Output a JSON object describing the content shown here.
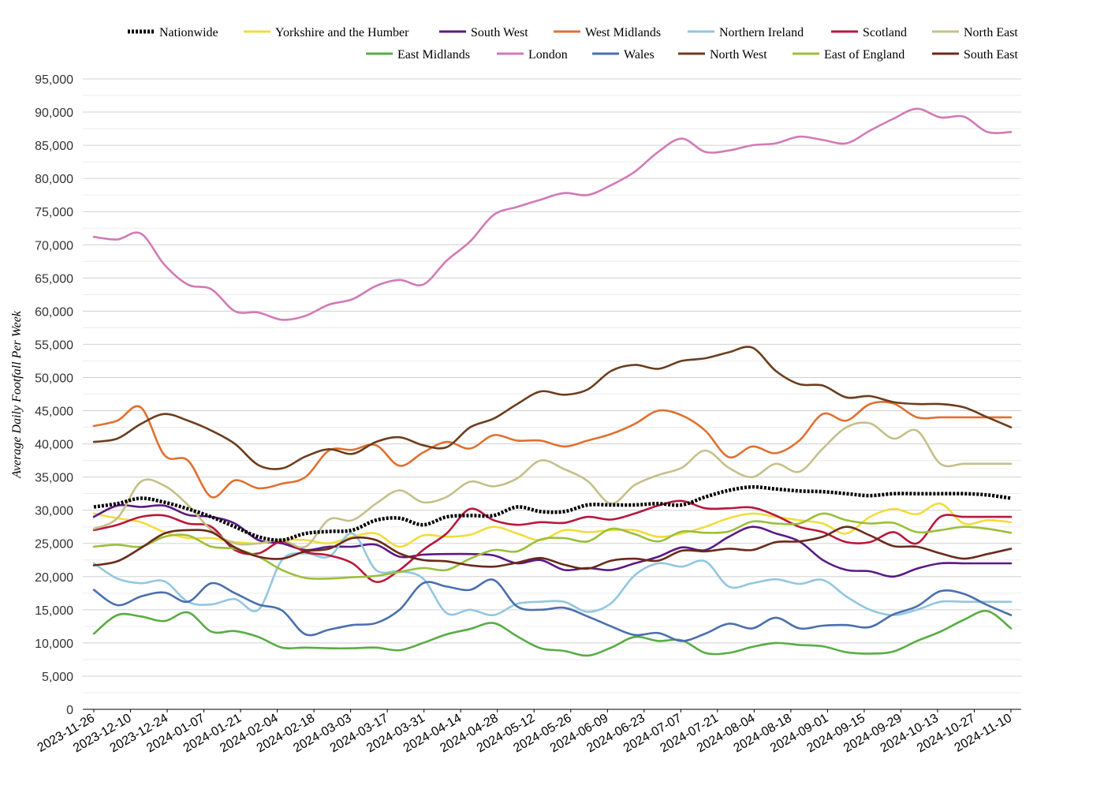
{
  "chart_data": {
    "type": "line",
    "title": "",
    "xlabel": "",
    "ylabel": "Average Daily Footfall Per Week",
    "ylim": [
      0,
      95000
    ],
    "grid": true,
    "legend": "top",
    "y_ticks": [
      "0",
      "5,000",
      "10,000",
      "15,000",
      "20,000",
      "25,000",
      "30,000",
      "35,000",
      "40,000",
      "45,000",
      "50,000",
      "55,000",
      "60,000",
      "65,000",
      "70,000",
      "75,000",
      "80,000",
      "85,000",
      "90,000",
      "95,000"
    ],
    "x_ticks": [
      "2023-11-26",
      "2023-12-10",
      "2023-12-24",
      "2024-01-07",
      "2024-01-21",
      "2024-02-04",
      "2024-02-18",
      "2024-03-03",
      "2024-03-17",
      "2024-03-31",
      "2024-04-14",
      "2024-04-28",
      "2024-05-12",
      "2024-05-26",
      "2024-06-09",
      "2024-06-23",
      "2024-07-07",
      "2024-07-21",
      "2024-08-04",
      "2024-08-18",
      "2024-09-01",
      "2024-09-15",
      "2024-09-29",
      "2024-10-13",
      "2024-10-27",
      "2024-11-10"
    ],
    "series": [
      {
        "name": "Nationwide",
        "color": "#000000",
        "dashed": true,
        "values": [
          30500,
          31000,
          31800,
          31200,
          30200,
          29000,
          27500,
          26000,
          25500,
          26500,
          26800,
          27000,
          28500,
          28800,
          27800,
          29000,
          29200,
          29200,
          30500,
          29800,
          29800,
          30800,
          30800,
          30800,
          31000,
          30800,
          32000,
          33000,
          33500,
          33200,
          32900,
          32800,
          32500,
          32200,
          32500,
          32500,
          32500,
          32500,
          32300,
          31800
        ]
      },
      {
        "name": "Yorkshire and the Humber",
        "color": "#f2dc3c",
        "values": [
          29500,
          28800,
          28200,
          26700,
          25800,
          25800,
          25200,
          25000,
          25500,
          25500,
          25000,
          26000,
          26500,
          24500,
          26200,
          26000,
          26300,
          27500,
          26500,
          25500,
          27000,
          26700,
          27000,
          27000,
          26000,
          26500,
          27500,
          28800,
          29500,
          29000,
          28500,
          28000,
          26500,
          29000,
          30200,
          29400,
          31000,
          28000,
          28500,
          28200
        ]
      },
      {
        "name": "South West",
        "color": "#5a1a82",
        "values": [
          29000,
          30700,
          30500,
          30700,
          29300,
          29000,
          28000,
          25500,
          25000,
          24000,
          24500,
          24500,
          24800,
          23000,
          23300,
          23400,
          23400,
          23200,
          22000,
          22500,
          21000,
          21300,
          21000,
          22000,
          23000,
          24400,
          24000,
          26000,
          27500,
          26500,
          25300,
          22500,
          21000,
          20800,
          20000,
          21200,
          22000,
          22000,
          22000,
          22000
        ]
      },
      {
        "name": "West Midlands",
        "color": "#e07030",
        "values": [
          42700,
          43500,
          45500,
          38300,
          37500,
          32000,
          34500,
          33300,
          34000,
          35000,
          39000,
          39100,
          39800,
          36700,
          38700,
          40300,
          39300,
          41300,
          40500,
          40500,
          39600,
          40500,
          41500,
          43000,
          45000,
          44300,
          42000,
          38000,
          39600,
          38600,
          40500,
          44500,
          43500,
          46000,
          46100,
          44000,
          44000,
          44000,
          44000,
          44000
        ]
      },
      {
        "name": "Northern Ireland",
        "color": "#93c6e0",
        "values": [
          22000,
          19700,
          19000,
          19300,
          16200,
          15800,
          16600,
          15000,
          22500,
          23500,
          23000,
          26500,
          21000,
          20800,
          19700,
          14500,
          15000,
          14200,
          15900,
          16200,
          16200,
          14700,
          16000,
          20200,
          22000,
          21500,
          22300,
          18500,
          19000,
          19600,
          18900,
          19500,
          17000,
          15000,
          14200,
          15000,
          16200,
          16200,
          16200,
          16200
        ]
      },
      {
        "name": "Scotland",
        "color": "#b8183c",
        "values": [
          27000,
          27800,
          29000,
          29200,
          28000,
          27500,
          24000,
          23500,
          25300,
          23700,
          23200,
          22000,
          19200,
          21000,
          24000,
          26500,
          30200,
          28500,
          27800,
          28200,
          28100,
          29000,
          28600,
          29500,
          30700,
          31400,
          30300,
          30300,
          30400,
          29200,
          27500,
          26700,
          25200,
          25200,
          26700,
          25000,
          29000,
          29000,
          29000,
          29000
        ]
      },
      {
        "name": "North East",
        "color": "#c4c08a",
        "values": [
          27200,
          28800,
          34300,
          33700,
          30800,
          27000,
          25000,
          25000,
          25500,
          24500,
          28600,
          28500,
          31000,
          33000,
          31200,
          32000,
          34300,
          33600,
          34800,
          37500,
          36200,
          34400,
          31000,
          33800,
          35300,
          36400,
          39000,
          36400,
          35000,
          37000,
          35800,
          39300,
          42500,
          43100,
          40800,
          42000,
          37000,
          37000,
          37000,
          37000
        ]
      },
      {
        "name": "East Midlands",
        "color": "#58ad44",
        "values": [
          11400,
          14200,
          14000,
          13300,
          14600,
          11700,
          11800,
          10900,
          9300,
          9300,
          9200,
          9200,
          9300,
          8900,
          10000,
          11300,
          12100,
          13000,
          11000,
          9200,
          8800,
          8100,
          9300,
          10900,
          10300,
          10400,
          8500,
          8500,
          9400,
          10000,
          9700,
          9500,
          8600,
          8400,
          8700,
          10300,
          11700,
          13500,
          14800,
          12200
        ]
      },
      {
        "name": "London",
        "color": "#d27ab6",
        "values": [
          71200,
          70800,
          71700,
          67000,
          64000,
          63300,
          60000,
          59800,
          58700,
          59300,
          61000,
          61800,
          63800,
          64700,
          64000,
          67600,
          70500,
          74500,
          75700,
          76800,
          77800,
          77500,
          79000,
          81000,
          84000,
          86000,
          84000,
          84200,
          85000,
          85300,
          86300,
          85800,
          85300,
          87200,
          89000,
          90500,
          89200,
          89300,
          87000,
          87000
        ]
      },
      {
        "name": "Wales",
        "color": "#4a6fad",
        "values": [
          18000,
          15700,
          17000,
          17600,
          16200,
          19000,
          17500,
          15800,
          14900,
          11300,
          12000,
          12700,
          13000,
          15000,
          19000,
          18500,
          18000,
          19500,
          15500,
          15000,
          15300,
          14000,
          12500,
          11200,
          11500,
          10300,
          11400,
          12900,
          12200,
          13800,
          12200,
          12600,
          12700,
          12400,
          14300,
          15500,
          17800,
          17400,
          15700,
          14200
        ]
      },
      {
        "name": "North West",
        "color": "#6b3e1e",
        "values": [
          40300,
          40800,
          43000,
          44500,
          43500,
          42000,
          40000,
          36800,
          36300,
          38100,
          39200,
          38500,
          40300,
          41000,
          39800,
          39500,
          42500,
          43800,
          46000,
          47900,
          47400,
          48200,
          51000,
          51900,
          51300,
          52500,
          52900,
          53800,
          54500,
          51000,
          49000,
          48800,
          47000,
          47200,
          46300,
          46000,
          46000,
          45500,
          44000,
          42500
        ]
      },
      {
        "name": "East of England",
        "color": "#9bbf3a",
        "values": [
          24500,
          24800,
          24500,
          26000,
          26200,
          24500,
          24200,
          23000,
          21000,
          19800,
          19700,
          19900,
          20100,
          20700,
          21300,
          21000,
          22700,
          24000,
          23800,
          25600,
          25800,
          25300,
          27200,
          26400,
          25300,
          26800,
          26600,
          26800,
          28300,
          28000,
          28000,
          29500,
          28500,
          28000,
          28100,
          26700,
          27000,
          27500,
          27200,
          26600
        ]
      },
      {
        "name": "South East",
        "color": "#6a2a1a",
        "values": [
          21700,
          22300,
          24300,
          26500,
          27000,
          26700,
          24400,
          23000,
          22700,
          23800,
          24200,
          25800,
          25500,
          23500,
          22500,
          22300,
          21700,
          21500,
          22100,
          22800,
          21800,
          21200,
          22400,
          22700,
          22400,
          23900,
          23800,
          24200,
          24000,
          25200,
          25300,
          26000,
          27500,
          26200,
          24600,
          24500,
          23500,
          22700,
          23400,
          24200
        ]
      }
    ]
  }
}
